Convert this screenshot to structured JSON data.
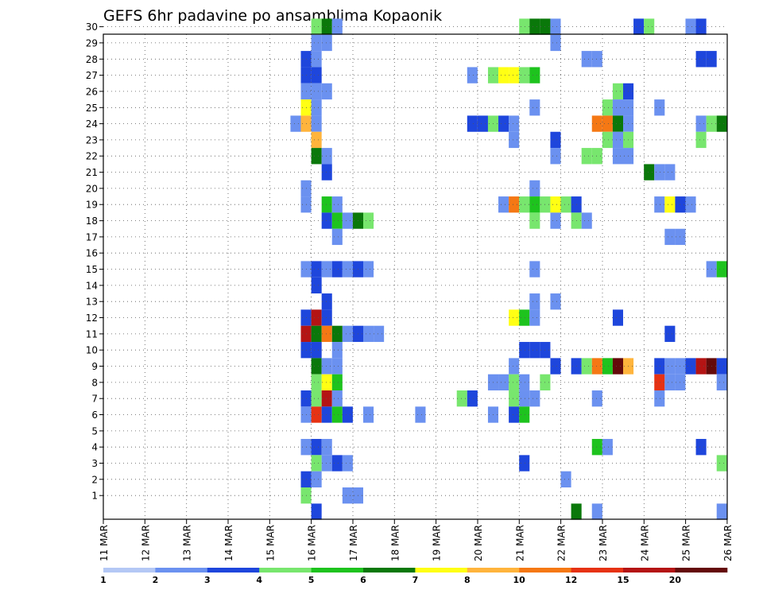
{
  "chart_data": {
    "type": "heatmap",
    "title": "GEFS 6hr padavine po ansamblima Kopaonik",
    "y_ticks": [
      "1",
      "2",
      "3",
      "4",
      "5",
      "6",
      "7",
      "8",
      "9",
      "10",
      "11",
      "12",
      "13",
      "14",
      "15",
      "16",
      "17",
      "18",
      "19",
      "20",
      "21",
      "22",
      "23",
      "24",
      "25",
      "26",
      "27",
      "28",
      "29",
      "30"
    ],
    "x_ticks": [
      "11 MAR",
      "12 MAR",
      "13 MAR",
      "14 MAR",
      "15 MAR",
      "16 MAR",
      "17 MAR",
      "18 MAR",
      "19 MAR",
      "20 MAR",
      "21 MAR",
      "22 MAR",
      "23 MAR",
      "24 MAR",
      "25 MAR",
      "26 MAR"
    ],
    "grid": true,
    "colorbar": {
      "labels": [
        "1",
        "2",
        "3",
        "4",
        "5",
        "6",
        "7",
        "8",
        "10",
        "12",
        "15",
        "20"
      ],
      "colors": [
        "#b4c8f5",
        "#6b91f0",
        "#1e46dc",
        "#78e66e",
        "#1ec31e",
        "#0a780a",
        "#ffff14",
        "#ffb43c",
        "#f57814",
        "#e63214",
        "#b41414",
        "#640a0a"
      ]
    },
    "cells": [
      [
        20,
        30,
        3
      ],
      [
        21,
        30,
        5
      ],
      [
        22,
        30,
        1
      ],
      [
        40,
        30,
        3
      ],
      [
        41,
        30,
        5
      ],
      [
        42,
        30,
        5
      ],
      [
        43,
        30,
        1
      ],
      [
        51,
        30,
        2
      ],
      [
        52,
        30,
        3
      ],
      [
        56,
        30,
        1
      ],
      [
        57,
        30,
        2
      ],
      [
        20,
        29,
        1
      ],
      [
        21,
        29,
        1
      ],
      [
        43,
        29,
        1
      ],
      [
        19,
        28,
        2
      ],
      [
        20,
        28,
        1
      ],
      [
        46,
        28,
        1
      ],
      [
        47,
        28,
        1
      ],
      [
        57,
        28,
        2
      ],
      [
        58,
        28,
        2
      ],
      [
        19,
        27,
        2
      ],
      [
        20,
        27,
        2
      ],
      [
        35,
        27,
        1
      ],
      [
        37,
        27,
        3
      ],
      [
        38,
        27,
        6
      ],
      [
        39,
        27,
        6
      ],
      [
        40,
        27,
        3
      ],
      [
        41,
        27,
        4
      ],
      [
        19,
        26,
        1
      ],
      [
        20,
        26,
        1
      ],
      [
        21,
        26,
        1
      ],
      [
        49,
        26,
        3
      ],
      [
        50,
        26,
        2
      ],
      [
        19,
        25,
        6
      ],
      [
        20,
        25,
        1
      ],
      [
        41,
        25,
        1
      ],
      [
        48,
        25,
        3
      ],
      [
        49,
        25,
        1
      ],
      [
        50,
        25,
        1
      ],
      [
        53,
        25,
        1
      ],
      [
        18,
        24,
        1
      ],
      [
        19,
        24,
        7
      ],
      [
        20,
        24,
        1
      ],
      [
        35,
        24,
        2
      ],
      [
        36,
        24,
        2
      ],
      [
        37,
        24,
        3
      ],
      [
        38,
        24,
        2
      ],
      [
        39,
        24,
        1
      ],
      [
        47,
        24,
        8
      ],
      [
        48,
        24,
        8
      ],
      [
        49,
        24,
        5
      ],
      [
        50,
        24,
        1
      ],
      [
        57,
        24,
        1
      ],
      [
        58,
        24,
        3
      ],
      [
        59,
        24,
        5
      ],
      [
        20,
        23,
        7
      ],
      [
        39,
        23,
        1
      ],
      [
        43,
        23,
        2
      ],
      [
        48,
        23,
        3
      ],
      [
        49,
        23,
        1
      ],
      [
        50,
        23,
        3
      ],
      [
        57,
        23,
        3
      ],
      [
        20,
        22,
        5
      ],
      [
        21,
        22,
        1
      ],
      [
        43,
        22,
        1
      ],
      [
        46,
        22,
        3
      ],
      [
        47,
        22,
        3
      ],
      [
        49,
        22,
        1
      ],
      [
        50,
        22,
        1
      ],
      [
        21,
        21,
        2
      ],
      [
        52,
        21,
        5
      ],
      [
        53,
        21,
        1
      ],
      [
        54,
        21,
        1
      ],
      [
        19,
        20,
        1
      ],
      [
        41,
        20,
        1
      ],
      [
        19,
        19,
        1
      ],
      [
        21,
        19,
        4
      ],
      [
        22,
        19,
        1
      ],
      [
        38,
        19,
        1
      ],
      [
        39,
        19,
        8
      ],
      [
        40,
        19,
        3
      ],
      [
        41,
        19,
        4
      ],
      [
        42,
        19,
        3
      ],
      [
        43,
        19,
        6
      ],
      [
        44,
        19,
        3
      ],
      [
        45,
        19,
        2
      ],
      [
        53,
        19,
        1
      ],
      [
        54,
        19,
        6
      ],
      [
        55,
        19,
        2
      ],
      [
        56,
        19,
        1
      ],
      [
        21,
        18,
        2
      ],
      [
        22,
        18,
        4
      ],
      [
        23,
        18,
        1
      ],
      [
        24,
        18,
        5
      ],
      [
        25,
        18,
        3
      ],
      [
        41,
        18,
        3
      ],
      [
        43,
        18,
        1
      ],
      [
        45,
        18,
        3
      ],
      [
        46,
        18,
        1
      ],
      [
        22,
        17,
        1
      ],
      [
        54,
        17,
        1
      ],
      [
        55,
        17,
        1
      ],
      [
        19,
        15,
        1
      ],
      [
        20,
        15,
        2
      ],
      [
        21,
        15,
        1
      ],
      [
        22,
        15,
        2
      ],
      [
        23,
        15,
        1
      ],
      [
        24,
        15,
        2
      ],
      [
        25,
        15,
        1
      ],
      [
        41,
        15,
        1
      ],
      [
        58,
        15,
        1
      ],
      [
        59,
        15,
        4
      ],
      [
        20,
        14,
        2
      ],
      [
        21,
        13,
        2
      ],
      [
        41,
        13,
        1
      ],
      [
        43,
        13,
        1
      ],
      [
        19,
        12,
        2
      ],
      [
        20,
        12,
        10
      ],
      [
        21,
        12,
        2
      ],
      [
        39,
        12,
        6
      ],
      [
        40,
        12,
        4
      ],
      [
        41,
        12,
        1
      ],
      [
        49,
        12,
        2
      ],
      [
        19,
        11,
        10
      ],
      [
        20,
        11,
        5
      ],
      [
        21,
        11,
        8
      ],
      [
        22,
        11,
        5
      ],
      [
        23,
        11,
        1
      ],
      [
        24,
        11,
        2
      ],
      [
        25,
        11,
        1
      ],
      [
        26,
        11,
        1
      ],
      [
        54,
        11,
        2
      ],
      [
        19,
        10,
        2
      ],
      [
        20,
        10,
        2
      ],
      [
        22,
        10,
        1
      ],
      [
        40,
        10,
        2
      ],
      [
        41,
        10,
        2
      ],
      [
        42,
        10,
        2
      ],
      [
        20,
        9,
        5
      ],
      [
        21,
        9,
        1
      ],
      [
        22,
        9,
        1
      ],
      [
        39,
        9,
        1
      ],
      [
        43,
        9,
        2
      ],
      [
        45,
        9,
        2
      ],
      [
        46,
        9,
        3
      ],
      [
        47,
        9,
        8
      ],
      [
        48,
        9,
        4
      ],
      [
        49,
        9,
        11
      ],
      [
        50,
        9,
        7
      ],
      [
        53,
        9,
        2
      ],
      [
        54,
        9,
        1
      ],
      [
        55,
        9,
        1
      ],
      [
        56,
        9,
        2
      ],
      [
        57,
        9,
        10
      ],
      [
        58,
        9,
        11
      ],
      [
        59,
        9,
        2
      ],
      [
        20,
        8,
        3
      ],
      [
        21,
        8,
        6
      ],
      [
        22,
        8,
        4
      ],
      [
        37,
        8,
        1
      ],
      [
        38,
        8,
        1
      ],
      [
        39,
        8,
        3
      ],
      [
        40,
        8,
        1
      ],
      [
        42,
        8,
        3
      ],
      [
        53,
        8,
        9
      ],
      [
        54,
        8,
        1
      ],
      [
        55,
        8,
        1
      ],
      [
        59,
        8,
        1
      ],
      [
        19,
        7,
        2
      ],
      [
        20,
        7,
        3
      ],
      [
        21,
        7,
        10
      ],
      [
        22,
        7,
        1
      ],
      [
        34,
        7,
        3
      ],
      [
        35,
        7,
        2
      ],
      [
        39,
        7,
        3
      ],
      [
        40,
        7,
        1
      ],
      [
        41,
        7,
        1
      ],
      [
        47,
        7,
        1
      ],
      [
        53,
        7,
        1
      ],
      [
        19,
        6,
        1
      ],
      [
        20,
        6,
        9
      ],
      [
        21,
        6,
        2
      ],
      [
        22,
        6,
        4
      ],
      [
        23,
        6,
        2
      ],
      [
        25,
        6,
        1
      ],
      [
        30,
        6,
        1
      ],
      [
        37,
        6,
        1
      ],
      [
        39,
        6,
        2
      ],
      [
        40,
        6,
        4
      ],
      [
        19,
        4,
        1
      ],
      [
        20,
        4,
        2
      ],
      [
        21,
        4,
        1
      ],
      [
        47,
        4,
        4
      ],
      [
        48,
        4,
        1
      ],
      [
        57,
        4,
        2
      ],
      [
        20,
        3,
        3
      ],
      [
        21,
        3,
        1
      ],
      [
        22,
        3,
        2
      ],
      [
        23,
        3,
        1
      ],
      [
        40,
        3,
        2
      ],
      [
        59,
        3,
        3
      ],
      [
        19,
        2,
        2
      ],
      [
        20,
        2,
        1
      ],
      [
        44,
        2,
        1
      ],
      [
        19,
        1,
        3
      ],
      [
        23,
        1,
        1
      ],
      [
        24,
        1,
        1
      ],
      [
        20,
        0,
        2
      ],
      [
        45,
        0,
        5
      ],
      [
        47,
        0,
        1
      ],
      [
        59,
        0,
        1
      ]
    ]
  }
}
